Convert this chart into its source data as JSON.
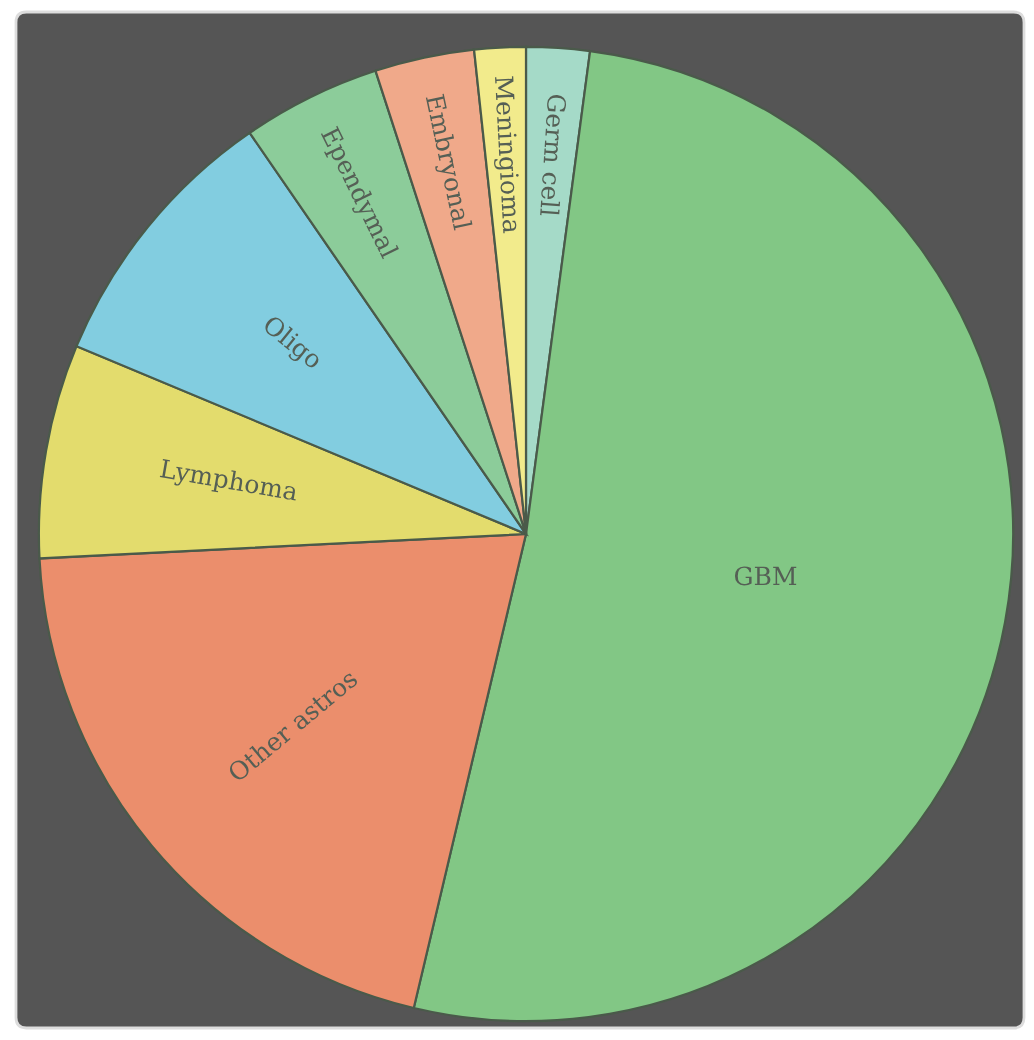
{
  "chart_data": {
    "type": "pie",
    "categories": [
      "Germ cell",
      "GBM",
      "Other astros",
      "Lymphoma",
      "Oligo",
      "Ependymal",
      "Embryonal",
      "Meningioma"
    ],
    "values": [
      2.1,
      51.6,
      20.5,
      7.1,
      9.1,
      4.6,
      3.3,
      1.7
    ],
    "colors": [
      "#a5dac8",
      "#82c785",
      "#eb8e6c",
      "#e3dc6d",
      "#82cde0",
      "#8ccc9a",
      "#f0a98a",
      "#f2eb8c"
    ]
  }
}
